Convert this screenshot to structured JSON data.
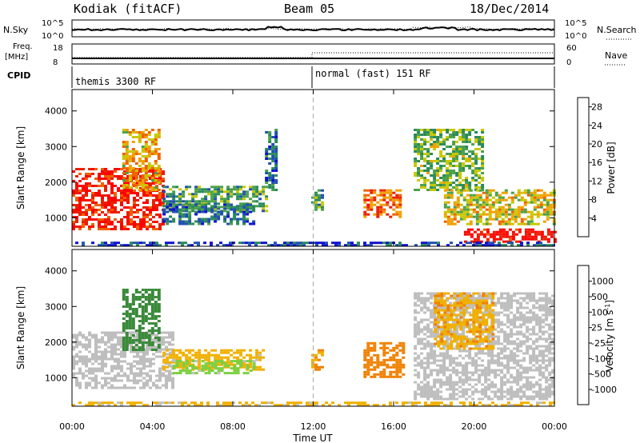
{
  "header": {
    "station": "Kodiak (fitACF)",
    "beam": "Beam 05",
    "date": "18/Dec/2014"
  },
  "strip_labels": {
    "nsky": "N.Sky",
    "nsky_ticks": [
      "10^5",
      "10^0"
    ],
    "nsearch": "N.Search",
    "nsearch_ticks": [
      "10^5",
      "10^0"
    ],
    "freq_line1": "Freq.",
    "freq_line2": "[MHz]",
    "freq_ticks": [
      "18",
      "8"
    ],
    "nave": "Nave",
    "nave_ticks": [
      "60",
      "0"
    ],
    "cpid": "CPID",
    "cpid_segments": [
      {
        "label": "themis 3300 RF",
        "start_hour": 0
      },
      {
        "label": "normal (fast) 151 RF",
        "start_hour": 12
      }
    ]
  },
  "colors": {
    "grid_dash": "#aaaaaa",
    "ground_scatter": "#bebebe",
    "power_scale": [
      "#1010d0",
      "#2050b0",
      "#2a8a5a",
      "#4aa04a",
      "#c8c800",
      "#f0a000",
      "#f06000",
      "#e82000",
      "#ff0000"
    ],
    "velocity_scale": [
      "#1030c0",
      "#2060b0",
      "#3a8a3a",
      "#7ad040",
      "#c0c0c0",
      "#f0b000",
      "#f08000",
      "#f04000",
      "#ff0000"
    ]
  },
  "chart_data": [
    {
      "type": "heatmap",
      "name": "power",
      "ylabel": "Slant Range [km]",
      "ylim": [
        200,
        4600
      ],
      "yticks": [
        "1000",
        "2000",
        "3000",
        "4000"
      ],
      "xlim": [
        0,
        24
      ],
      "colorbar": {
        "label": "Power [dB]",
        "ticks": [
          "4",
          "8",
          "12",
          "16",
          "20",
          "24",
          "28"
        ],
        "range": [
          0,
          30
        ]
      },
      "patches": [
        {
          "x0": 0.0,
          "x1": 4.5,
          "r0": 700,
          "r1": 2400,
          "level": 26
        },
        {
          "x0": 2.5,
          "x1": 4.4,
          "r0": 1800,
          "r1": 3500,
          "level": 18
        },
        {
          "x0": 4.5,
          "x1": 9.6,
          "r0": 1200,
          "r1": 1900,
          "level": 10
        },
        {
          "x0": 4.5,
          "x1": 9.0,
          "r0": 800,
          "r1": 1400,
          "level": 6
        },
        {
          "x0": 9.6,
          "x1": 10.2,
          "r0": 1800,
          "r1": 3500,
          "level": 6
        },
        {
          "x0": 11.9,
          "x1": 12.4,
          "r0": 1200,
          "r1": 1800,
          "level": 10
        },
        {
          "x0": 14.5,
          "x1": 16.3,
          "r0": 1000,
          "r1": 1800,
          "level": 22
        },
        {
          "x0": 17.0,
          "x1": 20.5,
          "r0": 1800,
          "r1": 3500,
          "level": 12
        },
        {
          "x0": 18.5,
          "x1": 24.0,
          "r0": 800,
          "r1": 1800,
          "level": 16
        },
        {
          "x0": 19.5,
          "x1": 24.0,
          "r0": 350,
          "r1": 700,
          "level": 28
        },
        {
          "x0": 0.0,
          "x1": 24.0,
          "r0": 220,
          "r1": 330,
          "level": 4
        }
      ]
    },
    {
      "type": "heatmap",
      "name": "velocity",
      "ylabel": "Slant Range [km]",
      "xlabel": "Time UT",
      "ylim": [
        200,
        4600
      ],
      "yticks": [
        "1000",
        "2000",
        "3000",
        "4000"
      ],
      "xlim": [
        0,
        24
      ],
      "xticks": [
        "00:00",
        "04:00",
        "08:00",
        "12:00",
        "16:00",
        "20:00",
        "00:00"
      ],
      "colorbar": {
        "label": "Velocity [m s",
        "label_sup": "-1",
        "label_end": "]",
        "ticks": [
          "1000",
          "500",
          "100",
          "25",
          "-25",
          "-100",
          "-500",
          "-1000"
        ]
      },
      "patches": [
        {
          "x0": 0.0,
          "x1": 5.0,
          "r0": 700,
          "r1": 2300,
          "level": 0,
          "ground": true
        },
        {
          "x0": 2.5,
          "x1": 4.4,
          "r0": 1800,
          "r1": 3500,
          "level": 150
        },
        {
          "x0": 4.5,
          "x1": 9.5,
          "r0": 1200,
          "r1": 1800,
          "level": -60
        },
        {
          "x0": 5.0,
          "x1": 9.0,
          "r0": 1100,
          "r1": 1500,
          "level": 60
        },
        {
          "x0": 11.9,
          "x1": 12.4,
          "r0": 1200,
          "r1": 1800,
          "level": -100
        },
        {
          "x0": 14.5,
          "x1": 16.5,
          "r0": 1000,
          "r1": 2000,
          "level": -150
        },
        {
          "x0": 17.0,
          "x1": 24.0,
          "r0": 400,
          "r1": 3400,
          "level": 0,
          "ground": true
        },
        {
          "x0": 18.0,
          "x1": 21.0,
          "r0": 1800,
          "r1": 3400,
          "level": -80
        },
        {
          "x0": 0.0,
          "x1": 24.0,
          "r0": 220,
          "r1": 330,
          "level": -50
        }
      ]
    }
  ]
}
